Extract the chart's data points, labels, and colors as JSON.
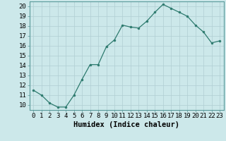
{
  "x": [
    0,
    1,
    2,
    3,
    4,
    5,
    6,
    7,
    8,
    9,
    10,
    11,
    12,
    13,
    14,
    15,
    16,
    17,
    18,
    19,
    20,
    21,
    22,
    23
  ],
  "y": [
    11.5,
    11.0,
    10.2,
    9.8,
    9.8,
    11.0,
    12.6,
    14.1,
    14.1,
    15.9,
    16.6,
    18.1,
    17.9,
    17.8,
    18.5,
    19.4,
    20.2,
    19.8,
    19.4,
    19.0,
    18.1,
    17.4,
    16.3,
    16.5
  ],
  "line_color": "#2d7a6e",
  "marker": "o",
  "marker_size": 2.0,
  "bg_color": "#cce8ea",
  "grid_color": "#b0ced2",
  "xlabel": "Humidex (Indice chaleur)",
  "ylabel_ticks": [
    10,
    11,
    12,
    13,
    14,
    15,
    16,
    17,
    18,
    19,
    20
  ],
  "xlim": [
    -0.5,
    23.5
  ],
  "ylim": [
    9.5,
    20.5
  ],
  "xlabel_fontsize": 7.5,
  "tick_fontsize": 6.5,
  "linewidth": 0.9
}
